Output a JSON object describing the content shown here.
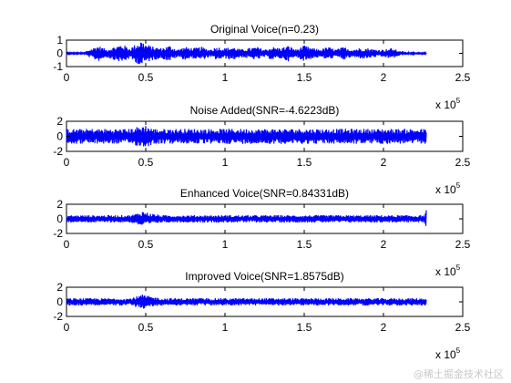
{
  "watermark": "@稀土掘金技术社区",
  "colors": {
    "signal": "#0000ff",
    "axes": "#000000",
    "background": "#ffffff"
  },
  "chart_data": [
    {
      "type": "line",
      "title": "Original Voice(n=0.23)",
      "xlabel": "",
      "ylabel": "",
      "xlim": [
        0,
        2.5
      ],
      "ylim": [
        -1,
        1
      ],
      "xticks": [
        "0",
        "0.5",
        "1",
        "1.5",
        "2",
        "2.5"
      ],
      "yticks": [
        "-1",
        "0",
        "1"
      ],
      "x_multiplier": "x 10^5",
      "series": [
        {
          "x_end": 2.27,
          "envelope_x": [
            0.0,
            0.05,
            0.1,
            0.2,
            0.25,
            0.3,
            0.35,
            0.4,
            0.45,
            0.47,
            0.5,
            0.55,
            0.6,
            0.65,
            0.7,
            0.75,
            0.8,
            0.85,
            0.9,
            0.95,
            1.0,
            1.05,
            1.1,
            1.15,
            1.2,
            1.25,
            1.3,
            1.35,
            1.4,
            1.45,
            1.5,
            1.55,
            1.6,
            1.65,
            1.7,
            1.75,
            1.8,
            1.85,
            1.9,
            1.95,
            2.0,
            2.05,
            2.1,
            2.15,
            2.2,
            2.27
          ],
          "envelope_amp": [
            0.05,
            0.05,
            0.05,
            0.6,
            0.3,
            0.5,
            0.7,
            0.4,
            0.8,
            1.0,
            0.7,
            0.5,
            0.4,
            0.6,
            0.3,
            0.5,
            0.4,
            0.5,
            0.3,
            0.5,
            0.4,
            0.5,
            0.3,
            0.4,
            0.5,
            0.3,
            0.5,
            0.4,
            0.6,
            0.3,
            0.6,
            0.4,
            0.3,
            0.5,
            0.3,
            0.5,
            0.3,
            0.4,
            0.4,
            0.3,
            0.3,
            0.4,
            0.2,
            0.1,
            0.05,
            0.05
          ]
        }
      ]
    },
    {
      "type": "line",
      "title": "Noise Added(SNR=-4.6223dB)",
      "xlabel": "",
      "ylabel": "",
      "xlim": [
        0,
        2.5
      ],
      "ylim": [
        -2,
        2
      ],
      "xticks": [
        "0",
        "0.5",
        "1",
        "1.5",
        "2",
        "2.5"
      ],
      "yticks": [
        "-2",
        "0",
        "2"
      ],
      "x_multiplier": "x 10^5",
      "series": [
        {
          "x_end": 2.27,
          "envelope_x": [
            0.0,
            0.4,
            0.45,
            0.5,
            0.55,
            2.27
          ],
          "envelope_amp": [
            1.0,
            1.0,
            1.3,
            1.5,
            1.0,
            1.0
          ]
        }
      ]
    },
    {
      "type": "line",
      "title": "Enhanced Voice(SNR=0.84331dB)",
      "xlabel": "",
      "ylabel": "",
      "xlim": [
        0,
        2.5
      ],
      "ylim": [
        -2,
        2
      ],
      "xticks": [
        "0",
        "0.5",
        "1",
        "1.5",
        "2",
        "2.5"
      ],
      "yticks": [
        "-2",
        "0",
        "2"
      ],
      "x_multiplier": "x 10^5",
      "series": [
        {
          "x_end": 2.27,
          "envelope_x": [
            0.0,
            0.4,
            0.45,
            0.48,
            0.52,
            0.6,
            2.26,
            2.27
          ],
          "envelope_amp": [
            0.5,
            0.5,
            0.8,
            1.1,
            0.8,
            0.5,
            0.5,
            1.2
          ]
        }
      ]
    },
    {
      "type": "line",
      "title": "Improved Voice(SNR=1.8575dB)",
      "xlabel": "",
      "ylabel": "",
      "xlim": [
        0,
        2.5
      ],
      "ylim": [
        -2,
        2
      ],
      "xticks": [
        "0",
        "0.5",
        "1",
        "1.5",
        "2",
        "2.5"
      ],
      "yticks": [
        "-2",
        "0",
        "2"
      ],
      "x_multiplier": "x 10^5",
      "series": [
        {
          "x_end": 2.27,
          "envelope_x": [
            0.0,
            0.4,
            0.45,
            0.48,
            0.52,
            0.6,
            2.27
          ],
          "envelope_amp": [
            0.5,
            0.5,
            0.8,
            1.0,
            0.8,
            0.5,
            0.5
          ]
        }
      ]
    }
  ]
}
